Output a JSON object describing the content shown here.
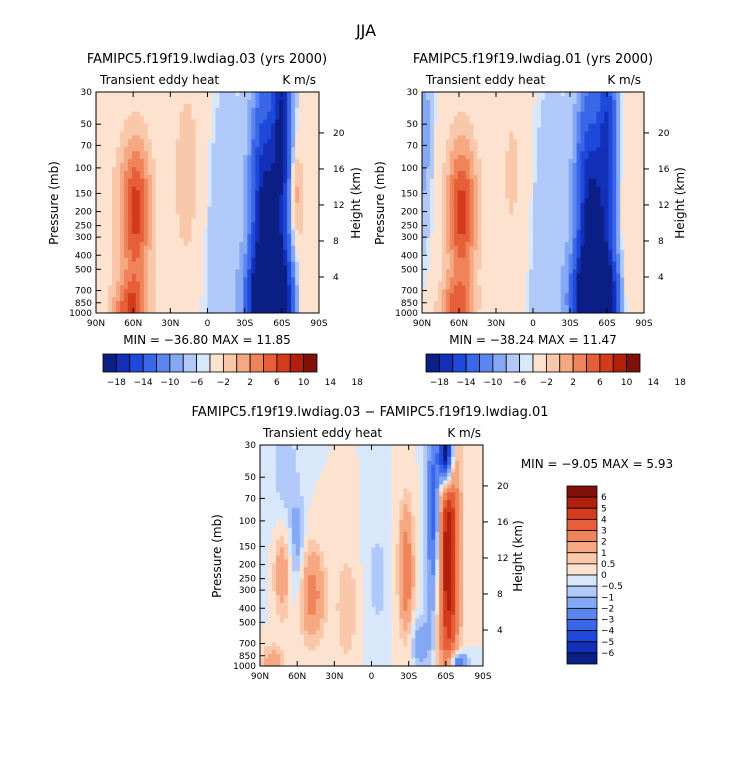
{
  "figure_title": "JJA",
  "colors": {
    "blue_scale_dark_to_light": [
      "#0b1f86",
      "#1230b8",
      "#1f49db",
      "#3a66e8",
      "#5c86ef",
      "#85a8f4",
      "#b1c9f8",
      "#d9e7fb"
    ],
    "red_scale_light_to_dark": [
      "#fde3cf",
      "#f9c8aa",
      "#f5a882",
      "#ef845a",
      "#e75f38",
      "#d23b1c",
      "#b0200c",
      "#80100a"
    ]
  },
  "chart_data": [
    {
      "type": "contour",
      "id": "top-left",
      "title": "FAMIPC5.f19f19.lwdiag.03 (yrs 2000)",
      "left_label": "Transient eddy heat",
      "right_label": "K m/s",
      "ylabel": "Pressure (mb)",
      "ylabel_right": "Height (km)",
      "xticks": [
        "90N",
        "60N",
        "30N",
        "0",
        "30S",
        "60S",
        "90S"
      ],
      "xvalues": [
        90,
        60,
        30,
        0,
        -30,
        -60,
        -90
      ],
      "pressure_ticks": [
        "30",
        "50",
        "70",
        "100",
        "150",
        "200",
        "250",
        "300",
        "400",
        "500",
        "700",
        "850",
        "1000"
      ],
      "pressure_values": [
        30,
        50,
        70,
        100,
        150,
        200,
        250,
        300,
        400,
        500,
        700,
        850,
        1000
      ],
      "height_ticks": [
        "20",
        "16",
        "12",
        "8",
        "4"
      ],
      "height_values": [
        20,
        16,
        12,
        8,
        4
      ],
      "stats": "MIN = −36.80   MAX =  11.85",
      "colorbar_orientation": "horizontal",
      "colorbar_labels": [
        "−18",
        "−14",
        "−10",
        "−6",
        "−2",
        "2",
        "6",
        "10",
        "14",
        "18"
      ],
      "blobs": [
        {
          "lat": 58,
          "p": 200,
          "dlat": 9,
          "dp": 0.85,
          "amp": 11
        },
        {
          "lat": 62,
          "p": 950,
          "dlat": 10,
          "dp": 0.35,
          "amp": 9
        },
        {
          "lat": 80,
          "p": 180,
          "dlat": 10,
          "dp": 1.2,
          "amp": 1
        },
        {
          "lat": 15,
          "p": 120,
          "dlat": 12,
          "dp": 1.5,
          "amp": 3
        },
        {
          "lat": -50,
          "p": 850,
          "dlat": 10,
          "dp": 0.5,
          "amp": -36
        },
        {
          "lat": -45,
          "p": 200,
          "dlat": 7,
          "dp": 1.3,
          "amp": -16
        },
        {
          "lat": -60,
          "p": 50,
          "dlat": 5,
          "dp": 0.9,
          "amp": -18
        },
        {
          "lat": -55,
          "p": 450,
          "dlat": 8,
          "dp": 1.2,
          "amp": -14
        },
        {
          "lat": -10,
          "p": 300,
          "dlat": 14,
          "dp": 1.6,
          "amp": -2
        },
        {
          "lat": -75,
          "p": 500,
          "dlat": 5,
          "dp": 1.5,
          "amp": 2
        },
        {
          "lat": -70,
          "p": 150,
          "dlat": 4,
          "dp": 0.5,
          "amp": 5
        }
      ]
    },
    {
      "type": "contour",
      "id": "top-right",
      "title": "FAMIPC5.f19f19.lwdiag.01 (yrs 2000)",
      "left_label": "Transient eddy heat",
      "right_label": "K m/s",
      "ylabel": "Pressure (mb)",
      "ylabel_right": "Height (km)",
      "xticks": [
        "90N",
        "60N",
        "30N",
        "0",
        "30S",
        "60S",
        "90S"
      ],
      "xvalues": [
        90,
        60,
        30,
        0,
        -30,
        -60,
        -90
      ],
      "pressure_ticks": [
        "30",
        "50",
        "70",
        "100",
        "150",
        "200",
        "250",
        "300",
        "400",
        "500",
        "700",
        "850",
        "1000"
      ],
      "pressure_values": [
        30,
        50,
        70,
        100,
        150,
        200,
        250,
        300,
        400,
        500,
        700,
        850,
        1000
      ],
      "height_ticks": [
        "20",
        "16",
        "12",
        "8",
        "4"
      ],
      "height_values": [
        20,
        16,
        12,
        8,
        4
      ],
      "stats": "MIN = −38.24   MAX =  11.47",
      "colorbar_orientation": "horizontal",
      "colorbar_labels": [
        "−18",
        "−14",
        "−10",
        "−6",
        "−2",
        "2",
        "6",
        "10",
        "14",
        "18"
      ],
      "blobs": [
        {
          "lat": 58,
          "p": 200,
          "dlat": 9,
          "dp": 0.85,
          "amp": 11
        },
        {
          "lat": 62,
          "p": 950,
          "dlat": 10,
          "dp": 0.35,
          "amp": 8
        },
        {
          "lat": 15,
          "p": 120,
          "dlat": 12,
          "dp": 1.5,
          "amp": 2.5
        },
        {
          "lat": -50,
          "p": 850,
          "dlat": 10,
          "dp": 0.5,
          "amp": -38
        },
        {
          "lat": -45,
          "p": 200,
          "dlat": 7,
          "dp": 1.3,
          "amp": -15
        },
        {
          "lat": -60,
          "p": 50,
          "dlat": 5,
          "dp": 0.9,
          "amp": -12
        },
        {
          "lat": -55,
          "p": 450,
          "dlat": 8,
          "dp": 1.2,
          "amp": -14
        },
        {
          "lat": -10,
          "p": 300,
          "dlat": 14,
          "dp": 1.6,
          "amp": -2
        },
        {
          "lat": -75,
          "p": 500,
          "dlat": 5,
          "dp": 1.5,
          "amp": 2
        },
        {
          "lat": 88,
          "p": 60,
          "dlat": 4,
          "dp": 1.0,
          "amp": -3
        }
      ]
    },
    {
      "type": "contour",
      "id": "bottom-diff",
      "title": "FAMIPC5.f19f19.lwdiag.03 − FAMIPC5.f19f19.lwdiag.01",
      "left_label": "Transient eddy heat",
      "right_label": "K m/s",
      "ylabel": "Pressure (mb)",
      "ylabel_right": "Height (km)",
      "xticks": [
        "90N",
        "60N",
        "30N",
        "0",
        "30S",
        "60S",
        "90S"
      ],
      "xvalues": [
        90,
        60,
        30,
        0,
        -30,
        -60,
        -90
      ],
      "pressure_ticks": [
        "30",
        "50",
        "70",
        "100",
        "150",
        "200",
        "250",
        "300",
        "400",
        "500",
        "700",
        "850",
        "1000"
      ],
      "pressure_values": [
        30,
        50,
        70,
        100,
        150,
        200,
        250,
        300,
        400,
        500,
        700,
        850,
        1000
      ],
      "height_ticks": [
        "20",
        "16",
        "12",
        "8",
        "4"
      ],
      "height_values": [
        20,
        16,
        12,
        8,
        4
      ],
      "stats": "MIN =  −9.05   MAX =   5.93",
      "colorbar_orientation": "vertical",
      "colorbar_labels": [
        "6",
        "5",
        "4",
        "3",
        "2",
        "1",
        "0.5",
        "0",
        "−0.5",
        "−1",
        "−2",
        "−3",
        "−4",
        "−5",
        "−6"
      ],
      "blobs": [
        {
          "lat": -62,
          "p": 180,
          "dlat": 6,
          "dp": 1.4,
          "amp": 6
        },
        {
          "lat": -60,
          "p": 35,
          "dlat": 4,
          "dp": 0.35,
          "amp": -9
        },
        {
          "lat": -50,
          "p": 90,
          "dlat": 4,
          "dp": 1.1,
          "amp": -4
        },
        {
          "lat": -28,
          "p": 220,
          "dlat": 4,
          "dp": 0.7,
          "amp": 3
        },
        {
          "lat": 72,
          "p": 220,
          "dlat": 5,
          "dp": 0.55,
          "amp": 2
        },
        {
          "lat": 48,
          "p": 320,
          "dlat": 7,
          "dp": 0.5,
          "amp": 2.5
        },
        {
          "lat": 60,
          "p": 150,
          "dlat": 4,
          "dp": 0.6,
          "amp": -1.2
        },
        {
          "lat": 20,
          "p": 400,
          "dlat": 6,
          "dp": 0.6,
          "amp": 1
        },
        {
          "lat": 70,
          "p": 60,
          "dlat": 8,
          "dp": 1.2,
          "amp": -0.8
        },
        {
          "lat": -5,
          "p": 250,
          "dlat": 6,
          "dp": 0.6,
          "amp": -0.8
        },
        {
          "lat": -70,
          "p": 960,
          "dlat": 5,
          "dp": 0.12,
          "amp": -4
        },
        {
          "lat": -40,
          "p": 700,
          "dlat": 6,
          "dp": 0.3,
          "amp": -1.5
        },
        {
          "lat": 80,
          "p": 950,
          "dlat": 6,
          "dp": 0.2,
          "amp": 1.5
        }
      ]
    }
  ]
}
